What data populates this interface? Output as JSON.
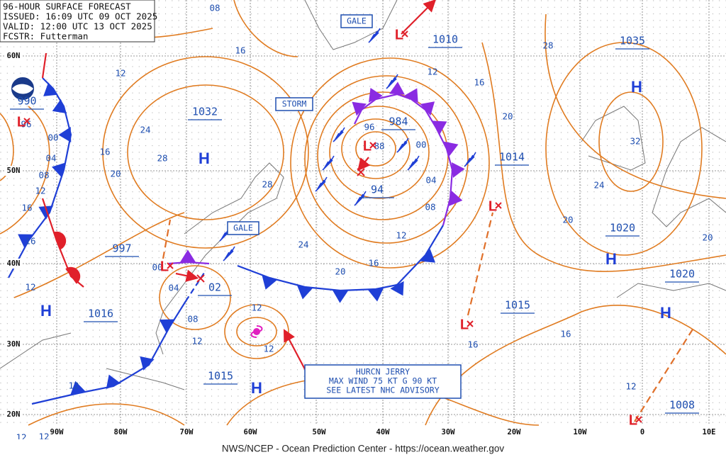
{
  "header": {
    "lines": [
      "96-HOUR SURFACE FORECAST",
      "ISSUED: 16:09 UTC 09 OCT 2025",
      "VALID: 12:00 UTC 13 OCT 2025",
      "FCSTR: Futterman"
    ]
  },
  "latitude_labels": [
    "60N",
    "50N",
    "40N",
    "30N",
    "20N"
  ],
  "longitude_labels": [
    "90W",
    "80W",
    "70W",
    "60W",
    "50W",
    "40W",
    "30W",
    "20W",
    "10W",
    "0",
    "10E"
  ],
  "pressure_labels": [
    "1010",
    "1035",
    "1032",
    "984",
    "94",
    "1014",
    "1020",
    "1020",
    "997",
    "1016",
    "1015",
    "1015",
    "1008",
    "02",
    "990"
  ],
  "isobar_labels": [
    "08",
    "16",
    "12",
    "24",
    "28",
    "20",
    "16",
    "28",
    "24",
    "20",
    "16",
    "12",
    "08",
    "04",
    "00",
    "96",
    "88",
    "12",
    "16",
    "20",
    "28",
    "32",
    "24",
    "20",
    "20",
    "16",
    "16",
    "12",
    "12",
    "12",
    "08",
    "12",
    "04",
    "00",
    "96",
    "00",
    "04",
    "08",
    "12",
    "16",
    "16",
    "12",
    "12",
    "12",
    "12"
  ],
  "warnings": [
    "GALE",
    "STORM",
    "GALE"
  ],
  "highs": [
    "H",
    "H",
    "H",
    "H",
    "H",
    "H"
  ],
  "lows": [
    "L",
    "L",
    "L",
    "L",
    "L",
    "L",
    "L"
  ],
  "advisory": {
    "lines": [
      "HURCN JERRY",
      "MAX WIND 75 KT G 90 KT",
      "SEE LATEST NHC ADVISORY"
    ]
  },
  "footer": "NWS/NCEP - Ocean Prediction Center - https://ocean.weather.gov"
}
